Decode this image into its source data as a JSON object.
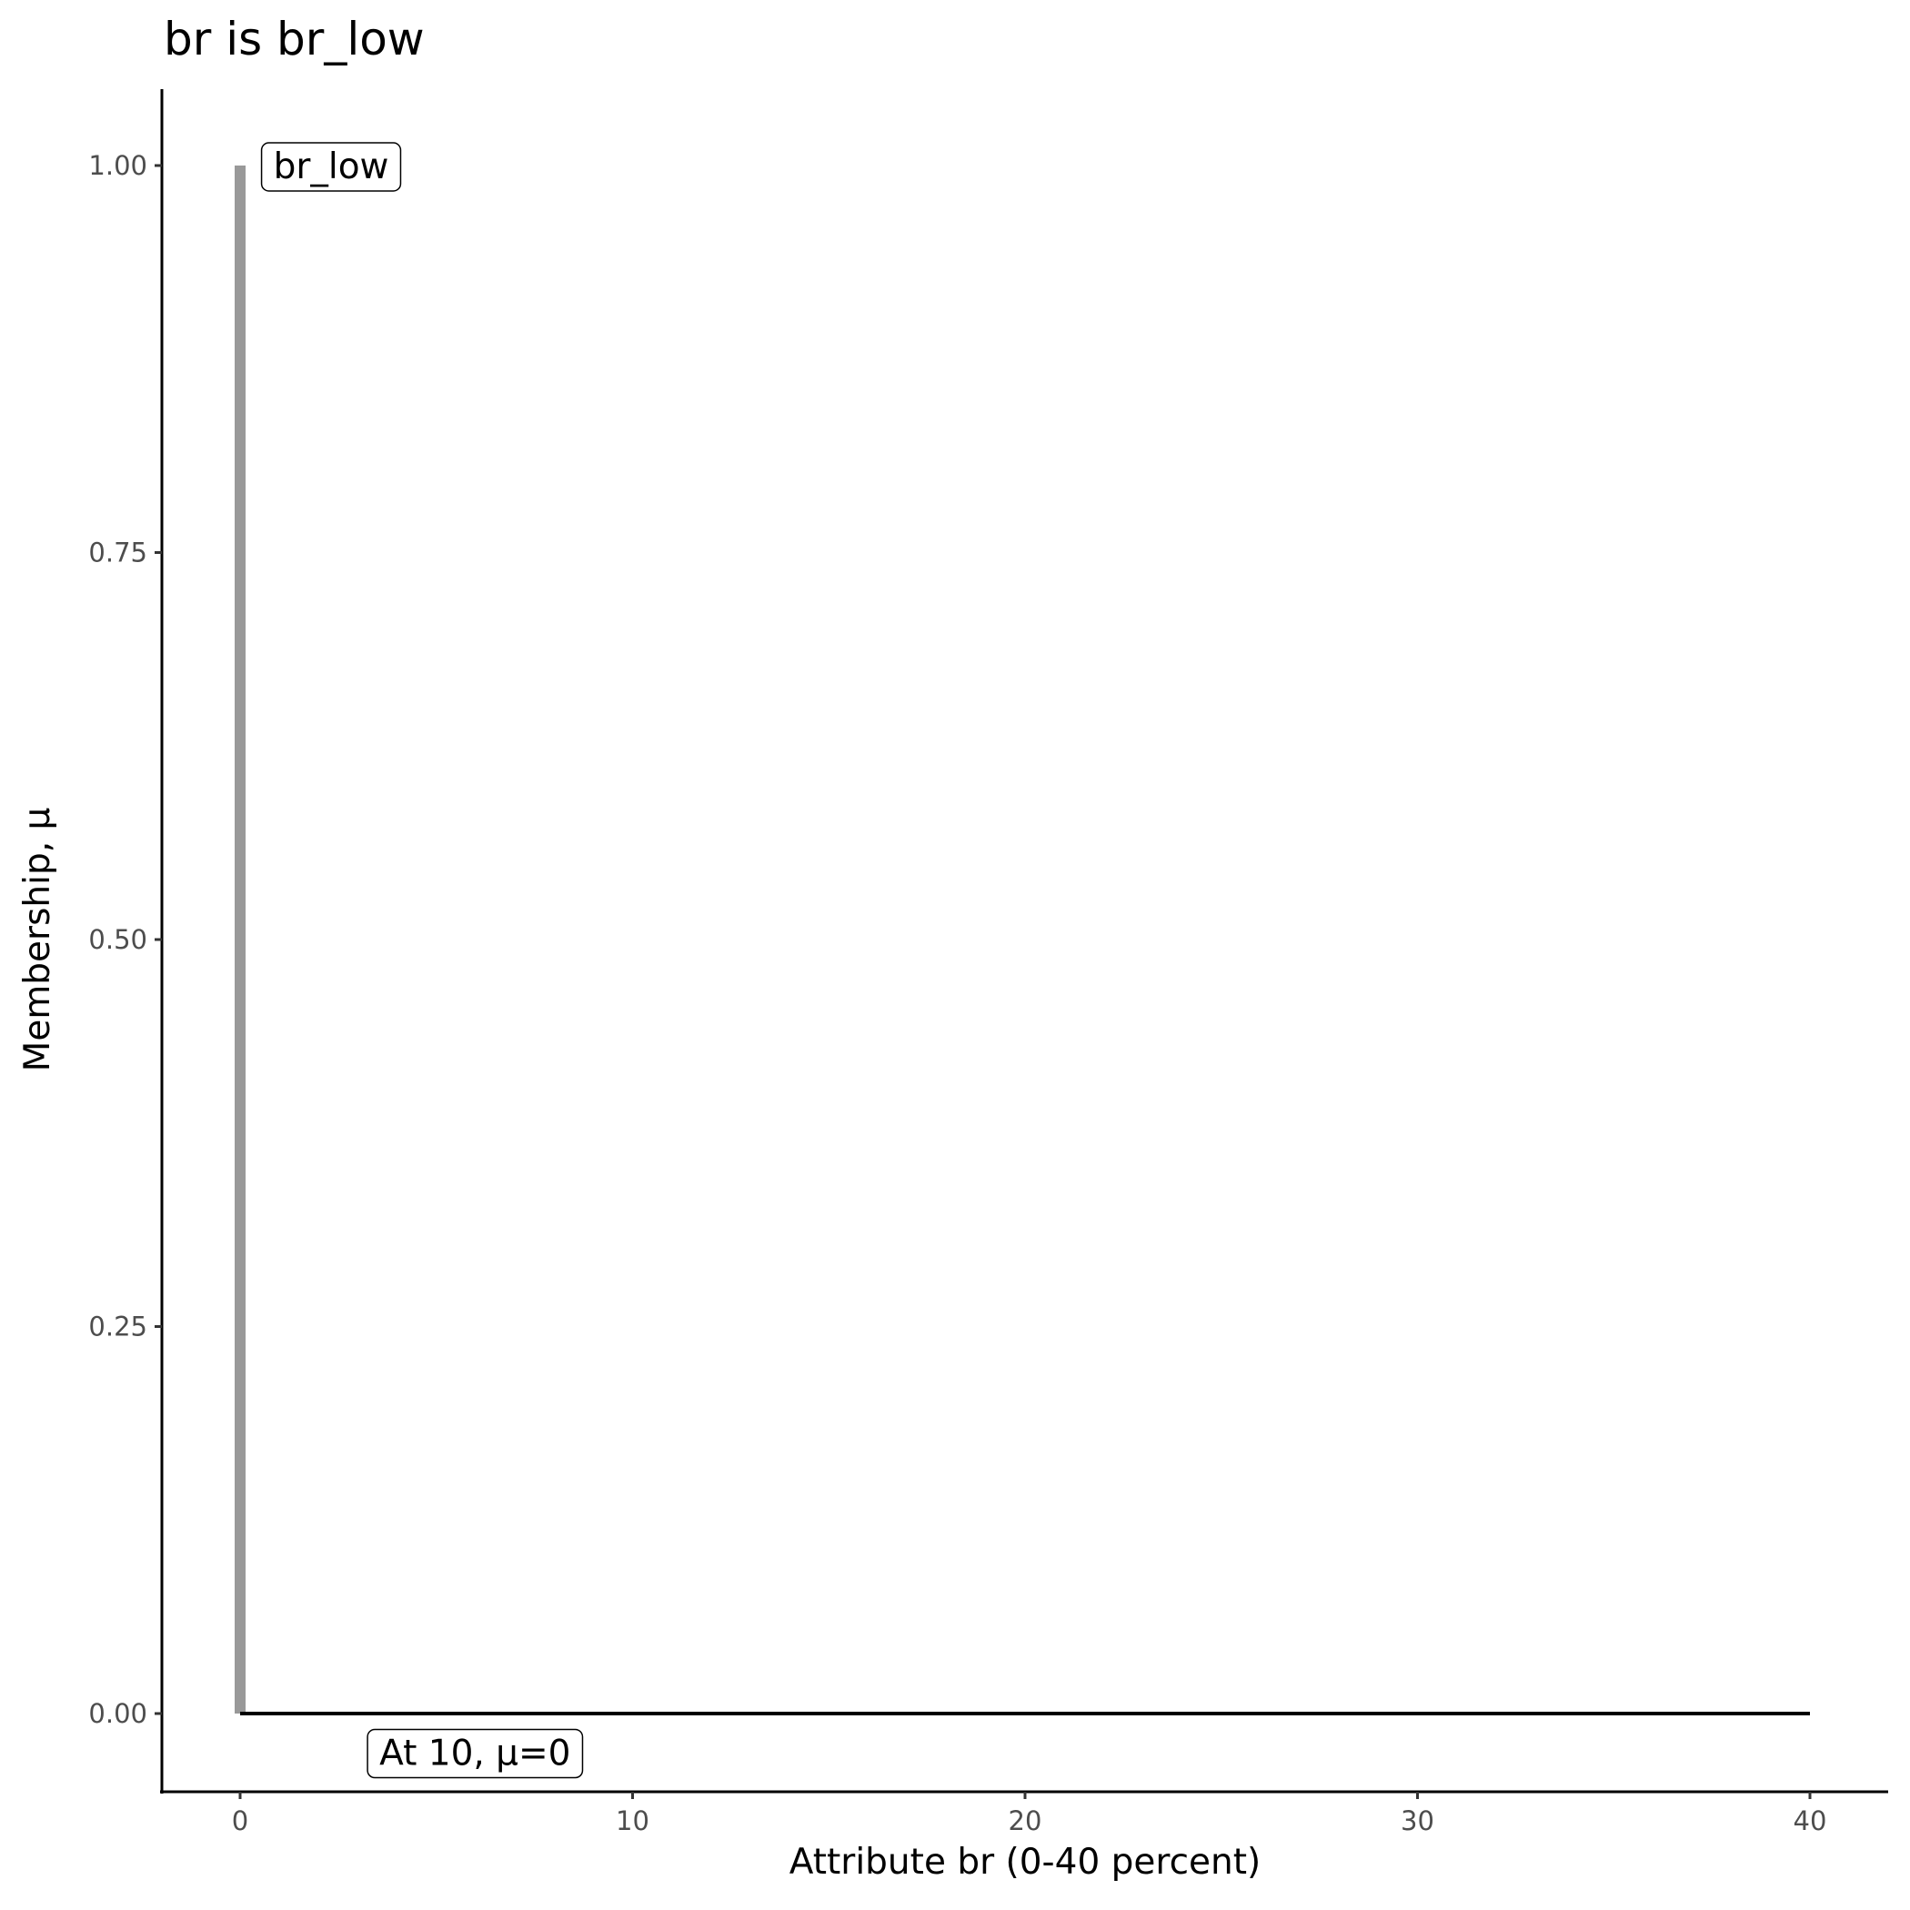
{
  "chart_data": {
    "type": "line",
    "title": "br is br_low",
    "xlabel": "Attribute br (0-40 percent)",
    "ylabel": "Membership, μ",
    "xlim": [
      -2,
      42
    ],
    "ylim": [
      -0.05,
      1.05
    ],
    "xticks": [
      0,
      10,
      20,
      30,
      40
    ],
    "xtick_labels": [
      "0",
      "10",
      "20",
      "30",
      "40"
    ],
    "yticks": [
      0,
      0.25,
      0.5,
      0.75,
      1
    ],
    "ytick_labels": [
      "0.00",
      "0.25",
      "0.50",
      "0.75",
      "1.00"
    ],
    "grid": false,
    "series": [
      {
        "x": [
          0,
          0
        ],
        "y": [
          0,
          1
        ],
        "color": "#999999"
      },
      {
        "x": [
          0,
          40
        ],
        "y": [
          0,
          0
        ],
        "color": "#000000"
      }
    ],
    "annotations": [
      {
        "text": "br_low",
        "x": 0.5,
        "y": 1.0
      },
      {
        "text": "At 10, μ=0",
        "x": 3.2,
        "y": -0.025
      }
    ]
  }
}
